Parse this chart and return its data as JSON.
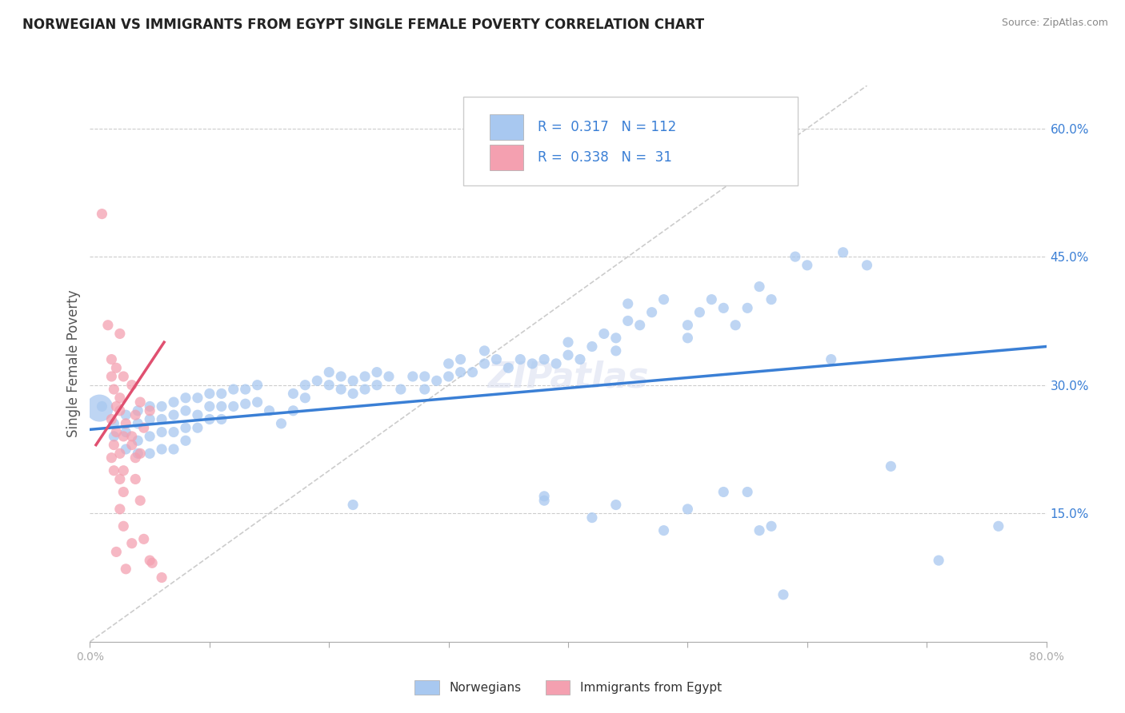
{
  "title": "NORWEGIAN VS IMMIGRANTS FROM EGYPT SINGLE FEMALE POVERTY CORRELATION CHART",
  "source": "Source: ZipAtlas.com",
  "ylabel": "Single Female Poverty",
  "xlim": [
    0.0,
    0.8
  ],
  "ylim": [
    0.0,
    0.65
  ],
  "y_ticks_right": [
    0.15,
    0.3,
    0.45,
    0.6
  ],
  "y_tick_labels_right": [
    "15.0%",
    "30.0%",
    "45.0%",
    "60.0%"
  ],
  "norwegian_R": 0.317,
  "norwegian_N": 112,
  "egypt_R": 0.338,
  "egypt_N": 31,
  "norwegian_color": "#a8c8f0",
  "egypt_color": "#f4a0b0",
  "norwegian_line_color": "#3a7fd5",
  "egypt_line_color": "#e05070",
  "background_color": "#ffffff",
  "watermark": "ZIPatlas",
  "norwegian_points": [
    [
      0.01,
      0.275
    ],
    [
      0.02,
      0.255
    ],
    [
      0.02,
      0.24
    ],
    [
      0.03,
      0.265
    ],
    [
      0.03,
      0.245
    ],
    [
      0.03,
      0.225
    ],
    [
      0.04,
      0.27
    ],
    [
      0.04,
      0.255
    ],
    [
      0.04,
      0.235
    ],
    [
      0.04,
      0.22
    ],
    [
      0.05,
      0.275
    ],
    [
      0.05,
      0.26
    ],
    [
      0.05,
      0.24
    ],
    [
      0.05,
      0.22
    ],
    [
      0.06,
      0.275
    ],
    [
      0.06,
      0.26
    ],
    [
      0.06,
      0.245
    ],
    [
      0.06,
      0.225
    ],
    [
      0.07,
      0.28
    ],
    [
      0.07,
      0.265
    ],
    [
      0.07,
      0.245
    ],
    [
      0.07,
      0.225
    ],
    [
      0.08,
      0.285
    ],
    [
      0.08,
      0.27
    ],
    [
      0.08,
      0.25
    ],
    [
      0.08,
      0.235
    ],
    [
      0.09,
      0.285
    ],
    [
      0.09,
      0.265
    ],
    [
      0.09,
      0.25
    ],
    [
      0.1,
      0.29
    ],
    [
      0.1,
      0.275
    ],
    [
      0.1,
      0.26
    ],
    [
      0.11,
      0.29
    ],
    [
      0.11,
      0.275
    ],
    [
      0.11,
      0.26
    ],
    [
      0.12,
      0.295
    ],
    [
      0.12,
      0.275
    ],
    [
      0.13,
      0.295
    ],
    [
      0.13,
      0.278
    ],
    [
      0.14,
      0.3
    ],
    [
      0.14,
      0.28
    ],
    [
      0.15,
      0.27
    ],
    [
      0.16,
      0.255
    ],
    [
      0.17,
      0.29
    ],
    [
      0.17,
      0.27
    ],
    [
      0.18,
      0.285
    ],
    [
      0.18,
      0.3
    ],
    [
      0.19,
      0.305
    ],
    [
      0.2,
      0.3
    ],
    [
      0.2,
      0.315
    ],
    [
      0.21,
      0.295
    ],
    [
      0.21,
      0.31
    ],
    [
      0.22,
      0.29
    ],
    [
      0.22,
      0.305
    ],
    [
      0.23,
      0.31
    ],
    [
      0.23,
      0.295
    ],
    [
      0.24,
      0.315
    ],
    [
      0.24,
      0.3
    ],
    [
      0.25,
      0.31
    ],
    [
      0.26,
      0.295
    ],
    [
      0.27,
      0.31
    ],
    [
      0.28,
      0.295
    ],
    [
      0.28,
      0.31
    ],
    [
      0.29,
      0.305
    ],
    [
      0.3,
      0.31
    ],
    [
      0.3,
      0.325
    ],
    [
      0.31,
      0.315
    ],
    [
      0.31,
      0.33
    ],
    [
      0.32,
      0.315
    ],
    [
      0.33,
      0.325
    ],
    [
      0.33,
      0.34
    ],
    [
      0.34,
      0.33
    ],
    [
      0.35,
      0.32
    ],
    [
      0.36,
      0.33
    ],
    [
      0.37,
      0.325
    ],
    [
      0.38,
      0.33
    ],
    [
      0.39,
      0.325
    ],
    [
      0.4,
      0.335
    ],
    [
      0.4,
      0.35
    ],
    [
      0.41,
      0.33
    ],
    [
      0.42,
      0.345
    ],
    [
      0.43,
      0.36
    ],
    [
      0.44,
      0.34
    ],
    [
      0.44,
      0.355
    ],
    [
      0.45,
      0.375
    ],
    [
      0.45,
      0.395
    ],
    [
      0.46,
      0.37
    ],
    [
      0.47,
      0.385
    ],
    [
      0.48,
      0.4
    ],
    [
      0.5,
      0.355
    ],
    [
      0.5,
      0.37
    ],
    [
      0.51,
      0.385
    ],
    [
      0.52,
      0.4
    ],
    [
      0.53,
      0.39
    ],
    [
      0.54,
      0.37
    ],
    [
      0.55,
      0.39
    ],
    [
      0.56,
      0.415
    ],
    [
      0.57,
      0.4
    ],
    [
      0.59,
      0.45
    ],
    [
      0.6,
      0.44
    ],
    [
      0.62,
      0.33
    ],
    [
      0.63,
      0.455
    ],
    [
      0.65,
      0.44
    ],
    [
      0.67,
      0.205
    ],
    [
      0.71,
      0.095
    ],
    [
      0.76,
      0.135
    ],
    [
      0.22,
      0.16
    ],
    [
      0.38,
      0.165
    ],
    [
      0.53,
      0.175
    ],
    [
      0.56,
      0.13
    ],
    [
      0.58,
      0.055
    ],
    [
      0.44,
      0.16
    ],
    [
      0.5,
      0.155
    ],
    [
      0.48,
      0.13
    ],
    [
      0.55,
      0.175
    ],
    [
      0.57,
      0.135
    ],
    [
      0.38,
      0.17
    ],
    [
      0.42,
      0.145
    ]
  ],
  "egypt_points": [
    [
      0.01,
      0.5
    ],
    [
      0.015,
      0.37
    ],
    [
      0.018,
      0.31
    ],
    [
      0.02,
      0.295
    ],
    [
      0.022,
      0.275
    ],
    [
      0.018,
      0.26
    ],
    [
      0.022,
      0.245
    ],
    [
      0.02,
      0.23
    ],
    [
      0.018,
      0.215
    ],
    [
      0.02,
      0.2
    ],
    [
      0.025,
      0.36
    ],
    [
      0.028,
      0.31
    ],
    [
      0.025,
      0.27
    ],
    [
      0.028,
      0.24
    ],
    [
      0.025,
      0.22
    ],
    [
      0.028,
      0.2
    ],
    [
      0.025,
      0.19
    ],
    [
      0.028,
      0.175
    ],
    [
      0.025,
      0.155
    ],
    [
      0.028,
      0.135
    ],
    [
      0.035,
      0.3
    ],
    [
      0.038,
      0.265
    ],
    [
      0.035,
      0.23
    ],
    [
      0.038,
      0.215
    ],
    [
      0.035,
      0.115
    ],
    [
      0.042,
      0.28
    ],
    [
      0.045,
      0.25
    ],
    [
      0.042,
      0.22
    ],
    [
      0.05,
      0.27
    ],
    [
      0.052,
      0.092
    ],
    [
      0.06,
      0.075
    ],
    [
      0.018,
      0.33
    ],
    [
      0.022,
      0.32
    ],
    [
      0.025,
      0.285
    ],
    [
      0.03,
      0.255
    ],
    [
      0.035,
      0.24
    ],
    [
      0.038,
      0.19
    ],
    [
      0.042,
      0.165
    ],
    [
      0.045,
      0.12
    ],
    [
      0.05,
      0.095
    ],
    [
      0.022,
      0.105
    ],
    [
      0.03,
      0.085
    ]
  ],
  "norway_big_point": [
    0.008,
    0.273
  ],
  "egypt_trend_x": [
    0.005,
    0.062
  ],
  "egypt_trend_y": [
    0.23,
    0.35
  ],
  "norway_trend_x": [
    0.0,
    0.8
  ],
  "norway_trend_y": [
    0.248,
    0.345
  ]
}
